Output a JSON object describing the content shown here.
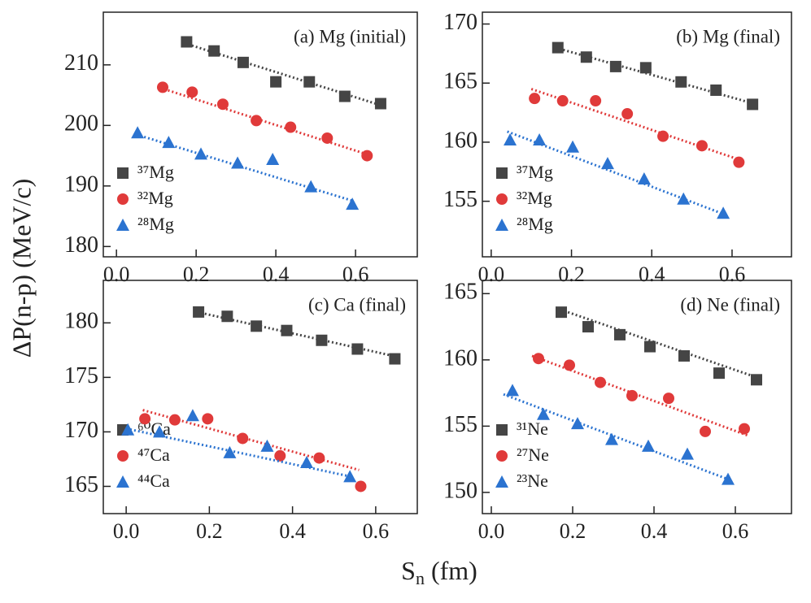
{
  "ylabel": "ΔP(n-p) (MeV/c)",
  "xlabel": {
    "symbol": "S",
    "subscript": "n",
    "unit": " (fm)"
  },
  "chart_data": [
    {
      "type": "scatter",
      "title": "(a) Mg (initial)",
      "xlim": [
        -0.033,
        0.755
      ],
      "ylim": [
        178.3,
        218.7
      ],
      "xticks": [
        {
          "value": 0,
          "label": "0.0"
        },
        0.2,
        0.4,
        0.6
      ],
      "yticks": [
        180,
        190,
        200,
        210
      ],
      "series": [
        {
          "name": "³⁷Mg",
          "color": "#454545",
          "marker": "square",
          "x": [
            0.176,
            0.245,
            0.318,
            0.4,
            0.484,
            0.573,
            0.663
          ],
          "values": [
            213.8,
            212.3,
            210.4,
            207.2,
            207.2,
            204.8,
            203.6
          ],
          "fit": {
            "x": [
              0.17,
              0.66
            ],
            "values": [
              213.6,
              203.4
            ]
          }
        },
        {
          "name": "³²Mg",
          "color": "#e03a3a",
          "marker": "circle",
          "x": [
            0.116,
            0.19,
            0.267,
            0.351,
            0.437,
            0.529,
            0.629
          ],
          "values": [
            206.3,
            205.5,
            203.5,
            200.8,
            199.7,
            197.9,
            195.0
          ],
          "fit": {
            "x": [
              0.11,
              0.63
            ],
            "values": [
              206.2,
              195.2
            ]
          }
        },
        {
          "name": "²⁸Mg",
          "color": "#2b73d0",
          "marker": "triangle",
          "x": [
            0.053,
            0.131,
            0.212,
            0.304,
            0.392,
            0.488,
            0.592
          ],
          "values": [
            198.8,
            197.2,
            195.3,
            193.8,
            194.4,
            189.9,
            187.0
          ],
          "fit": {
            "x": [
              0.05,
              0.59
            ],
            "values": [
              198.5,
              187.6
            ]
          }
        }
      ]
    },
    {
      "type": "scatter",
      "title": "(b) Mg (final)",
      "xlim": [
        -0.022,
        0.748
      ],
      "ylim": [
        150.3,
        171.0
      ],
      "xticks": [
        {
          "value": 0,
          "label": "0.0"
        },
        0.2,
        0.4,
        0.6
      ],
      "yticks": [
        155,
        160,
        165,
        170
      ],
      "series": [
        {
          "name": "³⁷Mg",
          "color": "#454545",
          "marker": "square",
          "x": [
            0.166,
            0.237,
            0.31,
            0.385,
            0.473,
            0.56,
            0.651
          ],
          "values": [
            168.0,
            167.2,
            166.4,
            166.3,
            165.1,
            164.4,
            163.2
          ],
          "fit": {
            "x": [
              0.16,
              0.65
            ],
            "values": [
              168.0,
              163.3
            ]
          }
        },
        {
          "name": "³²Mg",
          "color": "#e03a3a",
          "marker": "circle",
          "x": [
            0.108,
            0.178,
            0.26,
            0.339,
            0.428,
            0.525,
            0.617
          ],
          "values": [
            163.7,
            163.5,
            163.5,
            162.4,
            160.5,
            159.7,
            158.3
          ],
          "fit": {
            "x": [
              0.1,
              0.62
            ],
            "values": [
              164.5,
              158.5
            ]
          }
        },
        {
          "name": "²⁸Mg",
          "color": "#2b73d0",
          "marker": "triangle",
          "x": [
            0.047,
            0.12,
            0.203,
            0.29,
            0.381,
            0.479,
            0.578
          ],
          "values": [
            160.2,
            160.2,
            159.6,
            158.2,
            156.9,
            155.2,
            154.0
          ],
          "fit": {
            "x": [
              0.04,
              0.58
            ],
            "values": [
              160.9,
              153.9
            ]
          }
        }
      ]
    },
    {
      "type": "scatter",
      "title": "(c) Ca (final)",
      "xlim": [
        -0.055,
        0.7
      ],
      "ylim": [
        162.5,
        183.9
      ],
      "xticks": [
        {
          "value": 0,
          "label": "0.0"
        },
        0.2,
        0.4,
        0.6
      ],
      "yticks": [
        165,
        170,
        175,
        180
      ],
      "series": [
        {
          "name": "⁶⁰Ca",
          "color": "#454545",
          "marker": "square",
          "x": [
            0.174,
            0.243,
            0.313,
            0.386,
            0.47,
            0.556,
            0.646
          ],
          "values": [
            181.0,
            180.6,
            179.7,
            179.3,
            178.4,
            177.6,
            176.7
          ],
          "fit": {
            "x": [
              0.17,
              0.65
            ],
            "values": [
              181.0,
              176.9
            ]
          }
        },
        {
          "name": "⁴⁷Ca",
          "color": "#e03a3a",
          "marker": "circle",
          "x": [
            0.045,
            0.117,
            0.196,
            0.28,
            0.37,
            0.464,
            0.564
          ],
          "values": [
            171.2,
            171.1,
            171.2,
            169.4,
            167.8,
            167.6,
            165.0
          ],
          "fit": {
            "x": [
              0.04,
              0.56
            ],
            "values": [
              172.0,
              166.5
            ]
          }
        },
        {
          "name": "⁴⁴Ca",
          "color": "#2b73d0",
          "marker": "triangle",
          "x": [
            0.004,
            0.08,
            0.16,
            0.249,
            0.339,
            0.434,
            0.538
          ],
          "values": [
            170.2,
            170.0,
            171.5,
            168.1,
            168.7,
            167.2,
            165.9
          ],
          "fit": {
            "x": [
              0.0,
              0.54
            ],
            "values": [
              170.3,
              165.9
            ]
          }
        }
      ]
    },
    {
      "type": "scatter",
      "title": "(d) Ne (final)",
      "xlim": [
        -0.022,
        0.738
      ],
      "ylim": [
        148.4,
        166.0
      ],
      "xticks": [
        {
          "value": 0,
          "label": "0.0"
        },
        0.2,
        0.4,
        0.6
      ],
      "yticks": [
        150,
        155,
        160,
        165
      ],
      "series": [
        {
          "name": "³¹Ne",
          "color": "#454545",
          "marker": "square",
          "x": [
            0.172,
            0.238,
            0.316,
            0.39,
            0.474,
            0.56,
            0.652
          ],
          "values": [
            163.6,
            162.5,
            161.9,
            161.0,
            160.3,
            159.0,
            158.5
          ],
          "fit": {
            "x": [
              0.16,
              0.66
            ],
            "values": [
              163.9,
              158.6
            ]
          }
        },
        {
          "name": "²⁷Ne",
          "color": "#e03a3a",
          "marker": "circle",
          "x": [
            0.116,
            0.192,
            0.268,
            0.346,
            0.436,
            0.526,
            0.622
          ],
          "values": [
            160.1,
            159.6,
            158.3,
            157.3,
            157.1,
            154.6,
            154.8
          ],
          "fit": {
            "x": [
              0.1,
              0.63
            ],
            "values": [
              160.3,
              154.3
            ]
          }
        },
        {
          "name": "²³Ne",
          "color": "#2b73d0",
          "marker": "triangle",
          "x": [
            0.052,
            0.128,
            0.212,
            0.296,
            0.386,
            0.482,
            0.582
          ],
          "values": [
            157.7,
            155.9,
            155.2,
            154.0,
            153.5,
            152.9,
            151.0
          ],
          "fit": {
            "x": [
              0.03,
              0.59
            ],
            "values": [
              157.4,
              150.9
            ]
          }
        }
      ]
    }
  ]
}
